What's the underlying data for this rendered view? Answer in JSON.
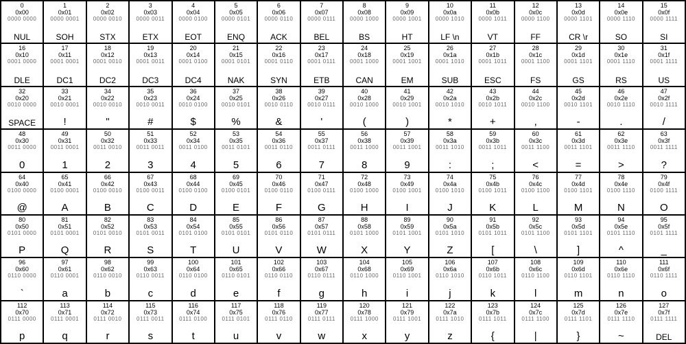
{
  "ascii_table": {
    "type": "table",
    "columns": 16,
    "rows": 8,
    "background_color": "#ffffff",
    "border_color": "#000000",
    "text_color": "#000000",
    "bin_color": "#666666",
    "dec_fontsize": 9,
    "hex_fontsize": 9,
    "bin_fontsize": 8,
    "glyph_fontsize": 15,
    "cells": [
      {
        "dec": "0",
        "hex": "0x00",
        "bin": "0000 0000",
        "glyph": "NUL"
      },
      {
        "dec": "1",
        "hex": "0x01",
        "bin": "0000 0001",
        "glyph": "SOH"
      },
      {
        "dec": "2",
        "hex": "0x02",
        "bin": "0000 0010",
        "glyph": "STX"
      },
      {
        "dec": "3",
        "hex": "0x03",
        "bin": "0000 0011",
        "glyph": "ETX"
      },
      {
        "dec": "4",
        "hex": "0x04",
        "bin": "0000 0100",
        "glyph": "EOT"
      },
      {
        "dec": "5",
        "hex": "0x05",
        "bin": "0000 0101",
        "glyph": "ENQ"
      },
      {
        "dec": "6",
        "hex": "0x06",
        "bin": "0000 0110",
        "glyph": "ACK"
      },
      {
        "dec": "7",
        "hex": "0x07",
        "bin": "0000 0111",
        "glyph": "BEL"
      },
      {
        "dec": "8",
        "hex": "0x08",
        "bin": "0000 1000",
        "glyph": "BS"
      },
      {
        "dec": "9",
        "hex": "0x09",
        "bin": "0000 1001",
        "glyph": "HT"
      },
      {
        "dec": "10",
        "hex": "0x0a",
        "bin": "0000 1010",
        "glyph": "LF \\n"
      },
      {
        "dec": "11",
        "hex": "0x0b",
        "bin": "0000 1011",
        "glyph": "VT"
      },
      {
        "dec": "12",
        "hex": "0x0c",
        "bin": "0000 1100",
        "glyph": "FF"
      },
      {
        "dec": "13",
        "hex": "0x0d",
        "bin": "0000 1101",
        "glyph": "CR \\r"
      },
      {
        "dec": "14",
        "hex": "0x0e",
        "bin": "0000 1110",
        "glyph": "SO"
      },
      {
        "dec": "15",
        "hex": "0x0f",
        "bin": "0000 1111",
        "glyph": "SI"
      },
      {
        "dec": "16",
        "hex": "0x10",
        "bin": "0001 0000",
        "glyph": "DLE"
      },
      {
        "dec": "17",
        "hex": "0x11",
        "bin": "0001 0001",
        "glyph": "DC1"
      },
      {
        "dec": "18",
        "hex": "0x12",
        "bin": "0001 0010",
        "glyph": "DC2"
      },
      {
        "dec": "19",
        "hex": "0x13",
        "bin": "0001 0011",
        "glyph": "DC3"
      },
      {
        "dec": "20",
        "hex": "0x14",
        "bin": "0001 0100",
        "glyph": "DC4"
      },
      {
        "dec": "21",
        "hex": "0x15",
        "bin": "0001 0101",
        "glyph": "NAK"
      },
      {
        "dec": "22",
        "hex": "0x16",
        "bin": "0001 0110",
        "glyph": "SYN"
      },
      {
        "dec": "23",
        "hex": "0x17",
        "bin": "0001 0111",
        "glyph": "ETB"
      },
      {
        "dec": "24",
        "hex": "0x18",
        "bin": "0001 1000",
        "glyph": "CAN"
      },
      {
        "dec": "25",
        "hex": "0x19",
        "bin": "0001 1001",
        "glyph": "EM"
      },
      {
        "dec": "26",
        "hex": "0x1a",
        "bin": "0001 1010",
        "glyph": "SUB"
      },
      {
        "dec": "27",
        "hex": "0x1b",
        "bin": "0001 1011",
        "glyph": "ESC"
      },
      {
        "dec": "28",
        "hex": "0x1c",
        "bin": "0001 1100",
        "glyph": "FS"
      },
      {
        "dec": "29",
        "hex": "0x1d",
        "bin": "0001 1101",
        "glyph": "GS"
      },
      {
        "dec": "30",
        "hex": "0x1e",
        "bin": "0001 1110",
        "glyph": "RS"
      },
      {
        "dec": "31",
        "hex": "0x1f",
        "bin": "0001 1111",
        "glyph": "US"
      },
      {
        "dec": "32",
        "hex": "0x20",
        "bin": "0010 0000",
        "glyph": "SPACE"
      },
      {
        "dec": "33",
        "hex": "0x21",
        "bin": "0010 0001",
        "glyph": "!"
      },
      {
        "dec": "34",
        "hex": "0x22",
        "bin": "0010 0010",
        "glyph": "\""
      },
      {
        "dec": "35",
        "hex": "0x23",
        "bin": "0010 0011",
        "glyph": "#"
      },
      {
        "dec": "36",
        "hex": "0x24",
        "bin": "0010 0100",
        "glyph": "$"
      },
      {
        "dec": "37",
        "hex": "0x25",
        "bin": "0010 0101",
        "glyph": "%"
      },
      {
        "dec": "38",
        "hex": "0x26",
        "bin": "0010 0110",
        "glyph": "&"
      },
      {
        "dec": "39",
        "hex": "0x27",
        "bin": "0010 0111",
        "glyph": "'"
      },
      {
        "dec": "40",
        "hex": "0x28",
        "bin": "0010 1000",
        "glyph": "("
      },
      {
        "dec": "41",
        "hex": "0x29",
        "bin": "0010 1001",
        "glyph": ")"
      },
      {
        "dec": "42",
        "hex": "0x2a",
        "bin": "0010 1010",
        "glyph": "*"
      },
      {
        "dec": "43",
        "hex": "0x2b",
        "bin": "0010 1011",
        "glyph": "+"
      },
      {
        "dec": "44",
        "hex": "0x2c",
        "bin": "0010 1100",
        "glyph": ","
      },
      {
        "dec": "45",
        "hex": "0x2d",
        "bin": "0010 1101",
        "glyph": "-"
      },
      {
        "dec": "46",
        "hex": "0x2e",
        "bin": "0010 1110",
        "glyph": "."
      },
      {
        "dec": "47",
        "hex": "0x2f",
        "bin": "0010 1111",
        "glyph": "/"
      },
      {
        "dec": "48",
        "hex": "0x30",
        "bin": "0011 0000",
        "glyph": "0"
      },
      {
        "dec": "49",
        "hex": "0x31",
        "bin": "0011 0001",
        "glyph": "1"
      },
      {
        "dec": "50",
        "hex": "0x32",
        "bin": "0011 0010",
        "glyph": "2"
      },
      {
        "dec": "51",
        "hex": "0x33",
        "bin": "0011 0011",
        "glyph": "3"
      },
      {
        "dec": "52",
        "hex": "0x34",
        "bin": "0011 0100",
        "glyph": "4"
      },
      {
        "dec": "53",
        "hex": "0x35",
        "bin": "0011 0101",
        "glyph": "5"
      },
      {
        "dec": "54",
        "hex": "0x36",
        "bin": "0011 0110",
        "glyph": "6"
      },
      {
        "dec": "55",
        "hex": "0x37",
        "bin": "0011 0111",
        "glyph": "7"
      },
      {
        "dec": "56",
        "hex": "0x38",
        "bin": "0011 1000",
        "glyph": "8"
      },
      {
        "dec": "57",
        "hex": "0x39",
        "bin": "0011 1001",
        "glyph": "9"
      },
      {
        "dec": "58",
        "hex": "0x3a",
        "bin": "0011 1010",
        "glyph": ":"
      },
      {
        "dec": "59",
        "hex": "0x3b",
        "bin": "0011 1011",
        "glyph": ";"
      },
      {
        "dec": "60",
        "hex": "0x3c",
        "bin": "0011 1100",
        "glyph": "<"
      },
      {
        "dec": "61",
        "hex": "0x3d",
        "bin": "0011 1101",
        "glyph": "="
      },
      {
        "dec": "62",
        "hex": "0x3e",
        "bin": "0011 1110",
        "glyph": ">"
      },
      {
        "dec": "63",
        "hex": "0x3f",
        "bin": "0011 1111",
        "glyph": "?"
      },
      {
        "dec": "64",
        "hex": "0x40",
        "bin": "0100 0000",
        "glyph": "@"
      },
      {
        "dec": "65",
        "hex": "0x41",
        "bin": "0100 0001",
        "glyph": "A"
      },
      {
        "dec": "66",
        "hex": "0x42",
        "bin": "0100 0010",
        "glyph": "B"
      },
      {
        "dec": "67",
        "hex": "0x43",
        "bin": "0100 0011",
        "glyph": "C"
      },
      {
        "dec": "68",
        "hex": "0x44",
        "bin": "0100 0100",
        "glyph": "D"
      },
      {
        "dec": "69",
        "hex": "0x45",
        "bin": "0100 0101",
        "glyph": "E"
      },
      {
        "dec": "70",
        "hex": "0x46",
        "bin": "0100 0110",
        "glyph": "F"
      },
      {
        "dec": "71",
        "hex": "0x47",
        "bin": "0100 0111",
        "glyph": "G"
      },
      {
        "dec": "72",
        "hex": "0x48",
        "bin": "0100 1000",
        "glyph": "H"
      },
      {
        "dec": "73",
        "hex": "0x49",
        "bin": "0100 1001",
        "glyph": "I"
      },
      {
        "dec": "74",
        "hex": "0x4a",
        "bin": "0100 1010",
        "glyph": "J"
      },
      {
        "dec": "75",
        "hex": "0x4b",
        "bin": "0100 1011",
        "glyph": "K"
      },
      {
        "dec": "76",
        "hex": "0x4c",
        "bin": "0100 1100",
        "glyph": "L"
      },
      {
        "dec": "77",
        "hex": "0x4d",
        "bin": "0100 1101",
        "glyph": "M"
      },
      {
        "dec": "78",
        "hex": "0x4e",
        "bin": "0100 1110",
        "glyph": "N"
      },
      {
        "dec": "79",
        "hex": "0x4f",
        "bin": "0100 1111",
        "glyph": "O"
      },
      {
        "dec": "80",
        "hex": "0x50",
        "bin": "0101 0000",
        "glyph": "P"
      },
      {
        "dec": "81",
        "hex": "0x51",
        "bin": "0101 0001",
        "glyph": "Q"
      },
      {
        "dec": "82",
        "hex": "0x52",
        "bin": "0101 0010",
        "glyph": "R"
      },
      {
        "dec": "83",
        "hex": "0x53",
        "bin": "0101 0011",
        "glyph": "S"
      },
      {
        "dec": "84",
        "hex": "0x54",
        "bin": "0101 0100",
        "glyph": "T"
      },
      {
        "dec": "85",
        "hex": "0x55",
        "bin": "0101 0101",
        "glyph": "U"
      },
      {
        "dec": "86",
        "hex": "0x56",
        "bin": "0101 0110",
        "glyph": "V"
      },
      {
        "dec": "87",
        "hex": "0x57",
        "bin": "0101 0111",
        "glyph": "W"
      },
      {
        "dec": "88",
        "hex": "0x58",
        "bin": "0101 1000",
        "glyph": "X"
      },
      {
        "dec": "89",
        "hex": "0x59",
        "bin": "0101 1001",
        "glyph": "Y"
      },
      {
        "dec": "90",
        "hex": "0x5a",
        "bin": "0101 1010",
        "glyph": "Z"
      },
      {
        "dec": "91",
        "hex": "0x5b",
        "bin": "0101 1011",
        "glyph": "["
      },
      {
        "dec": "92",
        "hex": "0x5c",
        "bin": "0101 1100",
        "glyph": "\\"
      },
      {
        "dec": "93",
        "hex": "0x5d",
        "bin": "0101 1101",
        "glyph": "]"
      },
      {
        "dec": "94",
        "hex": "0x5e",
        "bin": "0101 1110",
        "glyph": "^"
      },
      {
        "dec": "95",
        "hex": "0x5f",
        "bin": "0101 1111",
        "glyph": "_"
      },
      {
        "dec": "96",
        "hex": "0x60",
        "bin": "0110 0000",
        "glyph": "`"
      },
      {
        "dec": "97",
        "hex": "0x61",
        "bin": "0110 0001",
        "glyph": "a"
      },
      {
        "dec": "98",
        "hex": "0x62",
        "bin": "0110 0010",
        "glyph": "b"
      },
      {
        "dec": "99",
        "hex": "0x63",
        "bin": "0110 0011",
        "glyph": "c"
      },
      {
        "dec": "100",
        "hex": "0x64",
        "bin": "0110 0100",
        "glyph": "d"
      },
      {
        "dec": "101",
        "hex": "0x65",
        "bin": "0110 0101",
        "glyph": "e"
      },
      {
        "dec": "102",
        "hex": "0x66",
        "bin": "0110 0110",
        "glyph": "f"
      },
      {
        "dec": "103",
        "hex": "0x67",
        "bin": "0110 0111",
        "glyph": "g"
      },
      {
        "dec": "104",
        "hex": "0x68",
        "bin": "0110 1000",
        "glyph": "h"
      },
      {
        "dec": "105",
        "hex": "0x69",
        "bin": "0110 1001",
        "glyph": "i"
      },
      {
        "dec": "106",
        "hex": "0x6a",
        "bin": "0110 1010",
        "glyph": "j"
      },
      {
        "dec": "107",
        "hex": "0x6b",
        "bin": "0110 1011",
        "glyph": "k"
      },
      {
        "dec": "108",
        "hex": "0x6c",
        "bin": "0110 1100",
        "glyph": "l"
      },
      {
        "dec": "109",
        "hex": "0x6d",
        "bin": "0110 1101",
        "glyph": "m"
      },
      {
        "dec": "110",
        "hex": "0x6e",
        "bin": "0110 1110",
        "glyph": "n"
      },
      {
        "dec": "111",
        "hex": "0x6f",
        "bin": "0110 1111",
        "glyph": "o"
      },
      {
        "dec": "112",
        "hex": "0x70",
        "bin": "0111 0000",
        "glyph": "p"
      },
      {
        "dec": "113",
        "hex": "0x71",
        "bin": "0111 0001",
        "glyph": "q"
      },
      {
        "dec": "114",
        "hex": "0x72",
        "bin": "0111 0010",
        "glyph": "r"
      },
      {
        "dec": "115",
        "hex": "0x73",
        "bin": "0111 0011",
        "glyph": "s"
      },
      {
        "dec": "116",
        "hex": "0x74",
        "bin": "0111 0100",
        "glyph": "t"
      },
      {
        "dec": "117",
        "hex": "0x75",
        "bin": "0111 0101",
        "glyph": "u"
      },
      {
        "dec": "118",
        "hex": "0x76",
        "bin": "0111 0110",
        "glyph": "v"
      },
      {
        "dec": "119",
        "hex": "0x77",
        "bin": "0111 0111",
        "glyph": "w"
      },
      {
        "dec": "120",
        "hex": "0x78",
        "bin": "0111 1000",
        "glyph": "x"
      },
      {
        "dec": "121",
        "hex": "0x79",
        "bin": "0111 1001",
        "glyph": "y"
      },
      {
        "dec": "122",
        "hex": "0x7a",
        "bin": "0111 1010",
        "glyph": "z"
      },
      {
        "dec": "123",
        "hex": "0x7b",
        "bin": "0111 1011",
        "glyph": "{"
      },
      {
        "dec": "124",
        "hex": "0x7c",
        "bin": "0111 1100",
        "glyph": "|"
      },
      {
        "dec": "125",
        "hex": "0x7d",
        "bin": "0111 1101",
        "glyph": "}"
      },
      {
        "dec": "126",
        "hex": "0x7e",
        "bin": "0111 1110",
        "glyph": "~"
      },
      {
        "dec": "127",
        "hex": "0x7f",
        "bin": "0111 1111",
        "glyph": "DEL"
      }
    ]
  }
}
